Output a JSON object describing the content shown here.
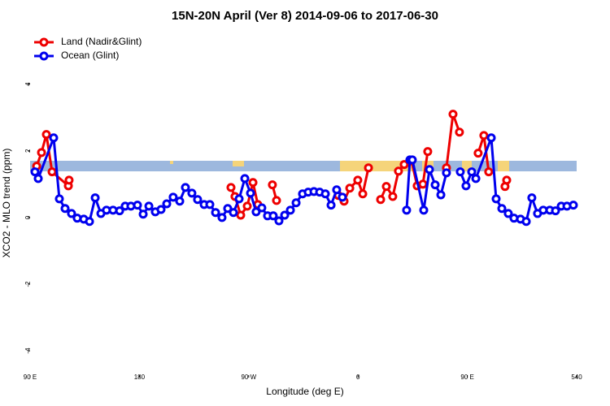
{
  "chart_data": {
    "type": "line",
    "title": "15N-20N April (Ver 8)   2014-09-06 to 2017-06-30",
    "xlabel": "Longitude (deg E)",
    "ylabel": "XCO2 - MLO trend (ppm)",
    "xlim": [
      90,
      540
    ],
    "ylim": [
      -4.73,
      5.6
    ],
    "xticks": [
      {
        "value": 90,
        "label": "90 E"
      },
      180,
      {
        "value": 270,
        "label": "90 W"
      },
      {
        "value": 360,
        "label": "0"
      },
      {
        "value": 450,
        "label": "90 E"
      },
      540
    ],
    "yticks": [
      -4,
      -2,
      0,
      2,
      4
    ],
    "legend": "top-left",
    "series": [
      {
        "name": "Land (Nadir&Glint)",
        "color": "#ee0000",
        "x": [
          95.4,
          99.4,
          103.4,
          108.1,
          121.5,
          122.1,
          null,
          255.4,
          258.7,
          263.4,
          268.8,
          273.5,
          277.5,
          null,
          289.5,
          292.9,
          null,
          343.8,
          348.5,
          353.2,
          359.8,
          363.9,
          368.6,
          null,
          378.6,
          383.3,
          388.6,
          393.3,
          398,
          404,
          408.7,
          413.4,
          417.4,
          null,
          432.8,
          438.2,
          443.5,
          null,
          458.9,
          463.6,
          467.6,
          null,
          481,
          482.4
        ],
        "values": [
          1.54,
          1.95,
          2.49,
          1.37,
          0.95,
          1.12,
          null,
          0.9,
          0.63,
          0.07,
          0.34,
          1.05,
          0.39,
          null,
          0.98,
          0.51,
          null,
          0.66,
          0.49,
          0.88,
          1.12,
          0.71,
          1.49,
          null,
          0.54,
          0.93,
          0.63,
          1.39,
          1.59,
          1.7,
          0.95,
          1.0,
          1.98,
          null,
          1.49,
          3.1,
          2.56,
          null,
          1.93,
          2.46,
          1.37,
          null,
          0.93,
          1.12
        ]
      },
      {
        "name": "Ocean (Glint)",
        "color": "#0000ee",
        "x": [
          94,
          96.7,
          109.4,
          114.1,
          118.8,
          124.1,
          128.8,
          134.2,
          138.9,
          143.6,
          148.3,
          152.9,
          158.3,
          163.7,
          168.3,
          173,
          178.4,
          183.1,
          187.8,
          193.1,
          197.8,
          202.5,
          207.8,
          213.2,
          217.9,
          223.2,
          227.9,
          233.3,
          238,
          242.7,
          248,
          252.7,
          257.4,
          262.1,
          266.8,
          271.5,
          276.1,
          280.8,
          285.5,
          290.2,
          294.9,
          299.6,
          304.3,
          309,
          314.3,
          319,
          323.7,
          328.4,
          333.1,
          337.8,
          342.4,
          347.1,
          null,
          400,
          402.7,
          404.7,
          414.1,
          418.8,
          423.5,
          428.2,
          432.8,
          null,
          444.2,
          448.9,
          453.6,
          457,
          469.7,
          473.7,
          478.4,
          483.7,
          488.4,
          493.8,
          498.5,
          503.1,
          507.8,
          512.5,
          517.9,
          522.6,
          527.3,
          532,
          537.3
        ],
        "values": [
          1.37,
          1.17,
          2.39,
          0.56,
          0.27,
          0.12,
          -0.02,
          -0.05,
          -0.12,
          0.59,
          0.12,
          0.22,
          0.22,
          0.2,
          0.34,
          0.34,
          0.37,
          0.1,
          0.34,
          0.17,
          0.24,
          0.41,
          0.61,
          0.49,
          0.9,
          0.73,
          0.54,
          0.39,
          0.39,
          0.15,
          0.0,
          0.27,
          0.15,
          0.56,
          1.17,
          0.73,
          0.17,
          0.29,
          0.05,
          0.05,
          -0.1,
          0.07,
          0.22,
          0.44,
          0.71,
          0.76,
          0.78,
          0.76,
          0.71,
          0.37,
          0.83,
          0.61,
          null,
          0.22,
          1.73,
          1.73,
          0.22,
          1.44,
          0.98,
          0.68,
          1.34,
          null,
          1.37,
          0.95,
          1.37,
          1.17,
          2.39,
          0.56,
          0.27,
          0.12,
          -0.02,
          -0.05,
          -0.12,
          0.59,
          0.12,
          0.22,
          0.22,
          0.2,
          0.34,
          0.34,
          0.37
        ]
      }
    ]
  }
}
